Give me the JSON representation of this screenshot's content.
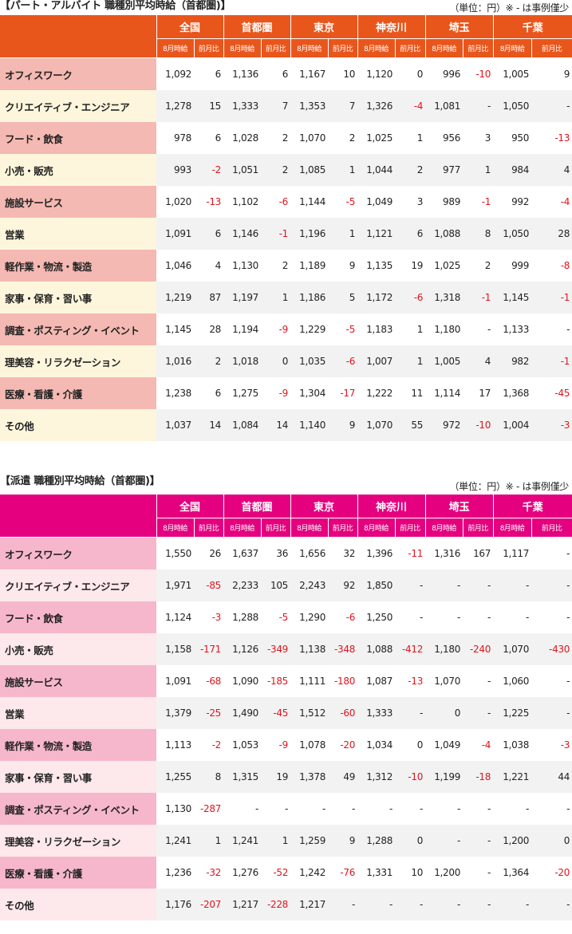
{
  "colors": {
    "part_header": "#e8561c",
    "part_cat_odd": "#f4b9b2",
    "part_cat_even": "#fdf6dc",
    "haken_header": "#e4007f",
    "haken_cat_odd": "#f6b7cc",
    "haken_cat_even": "#fde8ec",
    "negative": "#e0141e"
  },
  "part": {
    "title": "【パート・アルバイト 職種別平均時給（首都圏)】",
    "note": "（単位：円）※ - は事例僅少",
    "regions": [
      "全国",
      "首都圏",
      "東京",
      "神奈川",
      "埼玉",
      "千葉"
    ],
    "sub_wage": "8月時給",
    "sub_change": "前月比",
    "rows": [
      {
        "category": "オフィスワーク",
        "values": [
          "1,092",
          "6",
          "1,136",
          "6",
          "1,167",
          "10",
          "1,120",
          "0",
          "996",
          "-10",
          "1,005",
          "9"
        ]
      },
      {
        "category": "クリエイティブ・エンジニア",
        "values": [
          "1,278",
          "15",
          "1,333",
          "7",
          "1,353",
          "7",
          "1,326",
          "-4",
          "1,081",
          "-",
          "1,050",
          "-"
        ]
      },
      {
        "category": "フード・飲食",
        "values": [
          "978",
          "6",
          "1,028",
          "2",
          "1,070",
          "2",
          "1,025",
          "1",
          "956",
          "3",
          "950",
          "-13"
        ]
      },
      {
        "category": "小売・販売",
        "values": [
          "993",
          "-2",
          "1,051",
          "2",
          "1,085",
          "1",
          "1,044",
          "2",
          "977",
          "1",
          "984",
          "4"
        ]
      },
      {
        "category": "施設サービス",
        "values": [
          "1,020",
          "-13",
          "1,102",
          "-6",
          "1,144",
          "-5",
          "1,049",
          "3",
          "989",
          "-1",
          "992",
          "-4"
        ]
      },
      {
        "category": "営業",
        "values": [
          "1,091",
          "6",
          "1,146",
          "-1",
          "1,196",
          "1",
          "1,121",
          "6",
          "1,088",
          "8",
          "1,050",
          "28"
        ]
      },
      {
        "category": "軽作業・物流・製造",
        "values": [
          "1,046",
          "4",
          "1,130",
          "2",
          "1,189",
          "9",
          "1,135",
          "19",
          "1,025",
          "2",
          "999",
          "-8"
        ]
      },
      {
        "category": "家事・保育・習い事",
        "values": [
          "1,219",
          "87",
          "1,197",
          "1",
          "1,186",
          "5",
          "1,172",
          "-6",
          "1,318",
          "-1",
          "1,145",
          "-1"
        ]
      },
      {
        "category": "調査・ポスティング・イベント",
        "values": [
          "1,145",
          "28",
          "1,194",
          "-9",
          "1,229",
          "-5",
          "1,183",
          "1",
          "1,180",
          "-",
          "1,133",
          "-"
        ]
      },
      {
        "category": "理美容・リラクゼーション",
        "values": [
          "1,016",
          "2",
          "1,018",
          "0",
          "1,035",
          "-6",
          "1,007",
          "1",
          "1,005",
          "4",
          "982",
          "-1"
        ]
      },
      {
        "category": "医療・看護・介護",
        "values": [
          "1,238",
          "6",
          "1,275",
          "-9",
          "1,304",
          "-17",
          "1,222",
          "11",
          "1,114",
          "17",
          "1,368",
          "-45"
        ]
      },
      {
        "category": "その他",
        "values": [
          "1,037",
          "14",
          "1,084",
          "14",
          "1,140",
          "9",
          "1,070",
          "55",
          "972",
          "-10",
          "1,004",
          "-3"
        ]
      }
    ]
  },
  "haken": {
    "title": "【派遣 職種別平均時給（首都圏)】",
    "note": "（単位：円）※ - は事例僅少",
    "regions": [
      "全国",
      "首都圏",
      "東京",
      "神奈川",
      "埼玉",
      "千葉"
    ],
    "sub_wage": "8月時給",
    "sub_change": "前月比",
    "rows": [
      {
        "category": "オフィスワーク",
        "values": [
          "1,550",
          "26",
          "1,637",
          "36",
          "1,656",
          "32",
          "1,396",
          "-11",
          "1,316",
          "167",
          "1,117",
          "-"
        ]
      },
      {
        "category": "クリエイティブ・エンジニア",
        "values": [
          "1,971",
          "-85",
          "2,233",
          "105",
          "2,243",
          "92",
          "1,850",
          "-",
          "-",
          "-",
          "-",
          "-"
        ]
      },
      {
        "category": "フード・飲食",
        "values": [
          "1,124",
          "-3",
          "1,288",
          "-5",
          "1,290",
          "-6",
          "1,250",
          "-",
          "-",
          "-",
          "-",
          "-"
        ]
      },
      {
        "category": "小売・販売",
        "values": [
          "1,158",
          "-171",
          "1,126",
          "-349",
          "1,138",
          "-348",
          "1,088",
          "-412",
          "1,180",
          "-240",
          "1,070",
          "-430"
        ]
      },
      {
        "category": "施設サービス",
        "values": [
          "1,091",
          "-68",
          "1,090",
          "-185",
          "1,111",
          "-180",
          "1,087",
          "-13",
          "1,070",
          "-",
          "1,060",
          "-"
        ]
      },
      {
        "category": "営業",
        "values": [
          "1,379",
          "-25",
          "1,490",
          "-45",
          "1,512",
          "-60",
          "1,333",
          "-",
          "0",
          "-",
          "1,225",
          "-"
        ]
      },
      {
        "category": "軽作業・物流・製造",
        "values": [
          "1,113",
          "-2",
          "1,053",
          "-9",
          "1,078",
          "-20",
          "1,034",
          "0",
          "1,049",
          "-4",
          "1,038",
          "-3"
        ]
      },
      {
        "category": "家事・保育・習い事",
        "values": [
          "1,255",
          "8",
          "1,315",
          "19",
          "1,378",
          "49",
          "1,312",
          "-10",
          "1,199",
          "-18",
          "1,221",
          "44"
        ]
      },
      {
        "category": "調査・ポスティング・イベント",
        "values": [
          "1,130",
          "-287",
          "-",
          "-",
          "-",
          "-",
          "-",
          "-",
          "-",
          "-",
          "-",
          "-"
        ]
      },
      {
        "category": "理美容・リラクゼーション",
        "values": [
          "1,241",
          "1",
          "1,241",
          "1",
          "1,259",
          "9",
          "1,288",
          "0",
          "-",
          "-",
          "1,200",
          "0"
        ]
      },
      {
        "category": "医療・看護・介護",
        "values": [
          "1,236",
          "-32",
          "1,276",
          "-52",
          "1,242",
          "-76",
          "1,331",
          "10",
          "1,200",
          "-",
          "1,364",
          "-20"
        ]
      },
      {
        "category": "その他",
        "values": [
          "1,176",
          "-207",
          "1,217",
          "-228",
          "1,217",
          "-",
          "-",
          "-",
          "-",
          "-",
          "-",
          "-"
        ]
      }
    ]
  }
}
